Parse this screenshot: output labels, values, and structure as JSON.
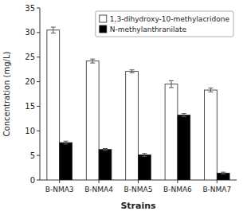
{
  "chart_data": {
    "type": "bar",
    "categories": [
      "B-NMA3",
      "B-NMA4",
      "B-NMA5",
      "B-NMA6",
      "B-NMA7"
    ],
    "series": [
      {
        "name": "1,3-dihydroxy-10-methylacridone",
        "color": "#ffffff",
        "values": [
          30.5,
          24.2,
          22.1,
          19.5,
          18.3
        ],
        "errors": [
          0.6,
          0.4,
          0.3,
          0.7,
          0.4
        ]
      },
      {
        "name": "N-methylanthranilate",
        "color": "#000000",
        "values": [
          7.6,
          6.2,
          5.1,
          13.2,
          1.4
        ],
        "errors": [
          0.3,
          0.2,
          0.3,
          0.3,
          0.2
        ]
      }
    ],
    "x_label": "Strains",
    "y_label": "Concentration (mg/L)",
    "ylim": [
      0,
      35
    ],
    "yticks": [
      0,
      5,
      10,
      15,
      20,
      25,
      30,
      35
    ],
    "grid": false,
    "legend": "upper right"
  }
}
